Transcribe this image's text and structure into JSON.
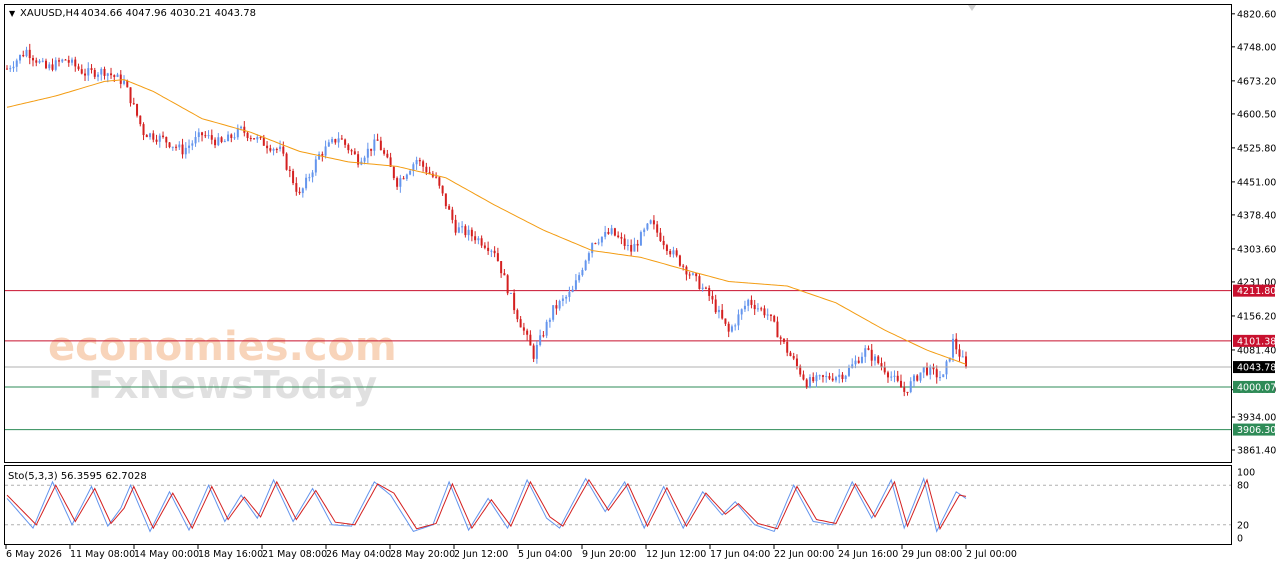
{
  "chart_data": [
    {
      "type": "candlestick",
      "symbol_header": "XAUUSD,H4",
      "ohlc_header": "4034.66 4047.96 4030.21 4043.78",
      "current_price_label": "4043.78",
      "ylim": [
        3835,
        4840
      ],
      "y_ticks": [
        "4820.60",
        "4748.00",
        "4673.20",
        "4600.50",
        "4525.80",
        "4451.00",
        "4378.40",
        "4303.60",
        "4231.00",
        "4156.20",
        "4081.40",
        "3994.00",
        "3934.00",
        "3861.40"
      ],
      "x_ticks": [
        "6 May 2026",
        "11 May 08:00",
        "14 May 00:00",
        "18 May 16:00",
        "21 May 08:00",
        "26 May 04:00",
        "28 May 20:00",
        "2 Jun 12:00",
        "5 Jun 04:00",
        "9 Jun 20:00",
        "12 Jun 12:00",
        "17 Jun 04:00",
        "22 Jun 00:00",
        "24 Jun 16:00",
        "29 Jun 08:00",
        "2 Jul 00:00"
      ],
      "levels": [
        {
          "price": 4211.8,
          "label": "4211.80",
          "color": "#c8102e",
          "kind": "resistance"
        },
        {
          "price": 4101.38,
          "label": "4101.38",
          "color": "#c8102e",
          "kind": "resistance"
        },
        {
          "price": 4000.07,
          "label": "4000.07",
          "color": "#2e8b57",
          "kind": "support"
        },
        {
          "price": 3906.3,
          "label": "3906.30",
          "color": "#2e8b57",
          "kind": "support"
        }
      ],
      "anchors": [
        [
          0,
          4700
        ],
        [
          6,
          4740
        ],
        [
          12,
          4700
        ],
        [
          18,
          4720
        ],
        [
          24,
          4690
        ],
        [
          30,
          4695
        ],
        [
          36,
          4670
        ],
        [
          42,
          4560
        ],
        [
          48,
          4545
        ],
        [
          54,
          4520
        ],
        [
          60,
          4555
        ],
        [
          66,
          4535
        ],
        [
          72,
          4565
        ],
        [
          78,
          4540
        ],
        [
          84,
          4520
        ],
        [
          90,
          4420
        ],
        [
          96,
          4510
        ],
        [
          102,
          4550
        ],
        [
          108,
          4500
        ],
        [
          114,
          4540
        ],
        [
          120,
          4450
        ],
        [
          126,
          4500
        ],
        [
          132,
          4455
        ],
        [
          138,
          4350
        ],
        [
          144,
          4330
        ],
        [
          150,
          4300
        ],
        [
          156,
          4175
        ],
        [
          162,
          4070
        ],
        [
          168,
          4170
        ],
        [
          174,
          4210
        ],
        [
          180,
          4320
        ],
        [
          186,
          4340
        ],
        [
          192,
          4300
        ],
        [
          198,
          4360
        ],
        [
          204,
          4300
        ],
        [
          210,
          4250
        ],
        [
          216,
          4200
        ],
        [
          222,
          4120
        ],
        [
          228,
          4190
        ],
        [
          234,
          4160
        ],
        [
          240,
          4080
        ],
        [
          246,
          4010
        ],
        [
          252,
          4020
        ],
        [
          258,
          4030
        ],
        [
          264,
          4080
        ],
        [
          270,
          4040
        ],
        [
          276,
          3990
        ],
        [
          282,
          4040
        ],
        [
          288,
          4020
        ],
        [
          291,
          4100
        ],
        [
          295,
          4044
        ]
      ],
      "moving_average": [
        [
          0,
          4615
        ],
        [
          15,
          4640
        ],
        [
          30,
          4672
        ],
        [
          36,
          4676
        ],
        [
          45,
          4650
        ],
        [
          60,
          4590
        ],
        [
          75,
          4560
        ],
        [
          90,
          4518
        ],
        [
          105,
          4495
        ],
        [
          120,
          4485
        ],
        [
          135,
          4460
        ],
        [
          150,
          4400
        ],
        [
          165,
          4345
        ],
        [
          180,
          4300
        ],
        [
          195,
          4285
        ],
        [
          210,
          4255
        ],
        [
          222,
          4232
        ],
        [
          240,
          4222
        ],
        [
          255,
          4185
        ],
        [
          270,
          4125
        ],
        [
          283,
          4081
        ],
        [
          295,
          4050
        ]
      ],
      "bars_total": 296,
      "ma_color": "#f39c12",
      "bull_color": "#6495ed",
      "bear_color": "#d42020"
    },
    {
      "type": "line",
      "header": "Sto(5,3,3) 56.3595 62.7028",
      "ylim": [
        0,
        100
      ],
      "y_ticks": [
        "100",
        "80",
        "20",
        "0"
      ],
      "levels": [
        80,
        20
      ],
      "series": [
        {
          "name": "%K",
          "color": "#6495ed"
        },
        {
          "name": "%D",
          "color": "#d42020"
        }
      ],
      "anchors_k": [
        [
          0,
          60
        ],
        [
          8,
          15
        ],
        [
          14,
          85
        ],
        [
          20,
          20
        ],
        [
          26,
          78
        ],
        [
          31,
          18
        ],
        [
          35,
          45
        ],
        [
          38,
          80
        ],
        [
          44,
          10
        ],
        [
          50,
          70
        ],
        [
          56,
          12
        ],
        [
          62,
          80
        ],
        [
          67,
          25
        ],
        [
          72,
          65
        ],
        [
          77,
          30
        ],
        [
          82,
          88
        ],
        [
          88,
          25
        ],
        [
          94,
          75
        ],
        [
          100,
          20
        ],
        [
          106,
          18
        ],
        [
          113,
          85
        ],
        [
          118,
          65
        ],
        [
          125,
          10
        ],
        [
          131,
          20
        ],
        [
          136,
          85
        ],
        [
          142,
          12
        ],
        [
          148,
          60
        ],
        [
          154,
          15
        ],
        [
          160,
          88
        ],
        [
          166,
          30
        ],
        [
          170,
          15
        ],
        [
          178,
          90
        ],
        [
          184,
          40
        ],
        [
          190,
          85
        ],
        [
          196,
          15
        ],
        [
          202,
          78
        ],
        [
          208,
          15
        ],
        [
          214,
          70
        ],
        [
          220,
          35
        ],
        [
          224,
          55
        ],
        [
          230,
          20
        ],
        [
          236,
          10
        ],
        [
          242,
          80
        ],
        [
          248,
          25
        ],
        [
          254,
          20
        ],
        [
          260,
          85
        ],
        [
          266,
          30
        ],
        [
          272,
          88
        ],
        [
          276,
          15
        ],
        [
          282,
          90
        ],
        [
          286,
          10
        ],
        [
          292,
          70
        ],
        [
          295,
          60
        ]
      ],
      "anchors_d": [
        [
          0,
          65
        ],
        [
          9,
          20
        ],
        [
          15,
          80
        ],
        [
          21,
          25
        ],
        [
          27,
          75
        ],
        [
          32,
          22
        ],
        [
          36,
          45
        ],
        [
          39,
          78
        ],
        [
          45,
          15
        ],
        [
          51,
          68
        ],
        [
          57,
          15
        ],
        [
          63,
          78
        ],
        [
          68,
          28
        ],
        [
          73,
          62
        ],
        [
          78,
          32
        ],
        [
          83,
          85
        ],
        [
          89,
          28
        ],
        [
          95,
          72
        ],
        [
          101,
          24
        ],
        [
          107,
          20
        ],
        [
          114,
          82
        ],
        [
          119,
          68
        ],
        [
          126,
          14
        ],
        [
          132,
          22
        ],
        [
          137,
          82
        ],
        [
          143,
          15
        ],
        [
          149,
          58
        ],
        [
          155,
          18
        ],
        [
          161,
          85
        ],
        [
          167,
          32
        ],
        [
          171,
          18
        ],
        [
          179,
          88
        ],
        [
          185,
          42
        ],
        [
          191,
          82
        ],
        [
          197,
          18
        ],
        [
          203,
          76
        ],
        [
          209,
          18
        ],
        [
          215,
          68
        ],
        [
          221,
          36
        ],
        [
          225,
          52
        ],
        [
          231,
          22
        ],
        [
          237,
          14
        ],
        [
          243,
          78
        ],
        [
          249,
          28
        ],
        [
          255,
          22
        ],
        [
          261,
          82
        ],
        [
          267,
          32
        ],
        [
          273,
          85
        ],
        [
          277,
          18
        ],
        [
          283,
          88
        ],
        [
          287,
          14
        ],
        [
          293,
          65
        ],
        [
          295,
          63
        ]
      ]
    }
  ],
  "watermarks": {
    "brand_top": "economies.com",
    "brand_bottom": "FxNewsToday"
  },
  "toolbar": {
    "collapse_glyph": "▼"
  }
}
